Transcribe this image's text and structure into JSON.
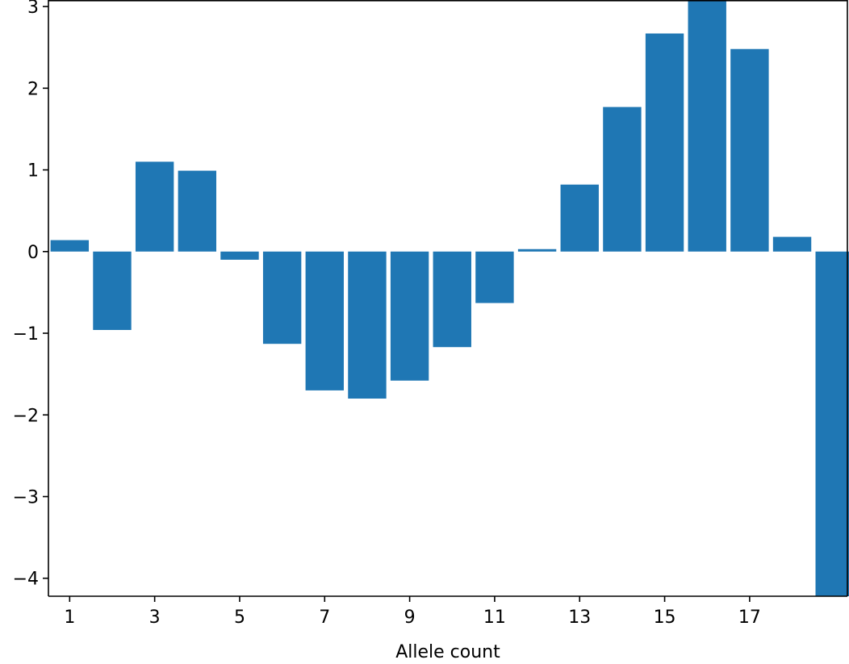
{
  "chart_data": {
    "type": "bar",
    "xlabel": "Allele count",
    "ylabel": "",
    "title": "",
    "categories": [
      1,
      2,
      3,
      4,
      5,
      6,
      7,
      8,
      9,
      10,
      11,
      12,
      13,
      14,
      15,
      16,
      17,
      18,
      19
    ],
    "values": [
      0.14,
      -0.96,
      1.1,
      0.99,
      -0.1,
      -1.13,
      -1.7,
      -1.8,
      -1.58,
      -1.17,
      -0.63,
      0.03,
      0.82,
      1.77,
      2.67,
      3.15,
      2.48,
      0.18,
      -4.25
    ],
    "x_ticks": [
      "1",
      "3",
      "5",
      "7",
      "9",
      "11",
      "13",
      "15",
      "17"
    ],
    "y_ticks": [
      "−4",
      "−3",
      "−2",
      "−1",
      "0",
      "1",
      "2",
      "3"
    ],
    "ylim": [
      -4.22,
      3.08
    ],
    "grid": false,
    "legend": "none",
    "bar_color": "#1f77b4"
  }
}
